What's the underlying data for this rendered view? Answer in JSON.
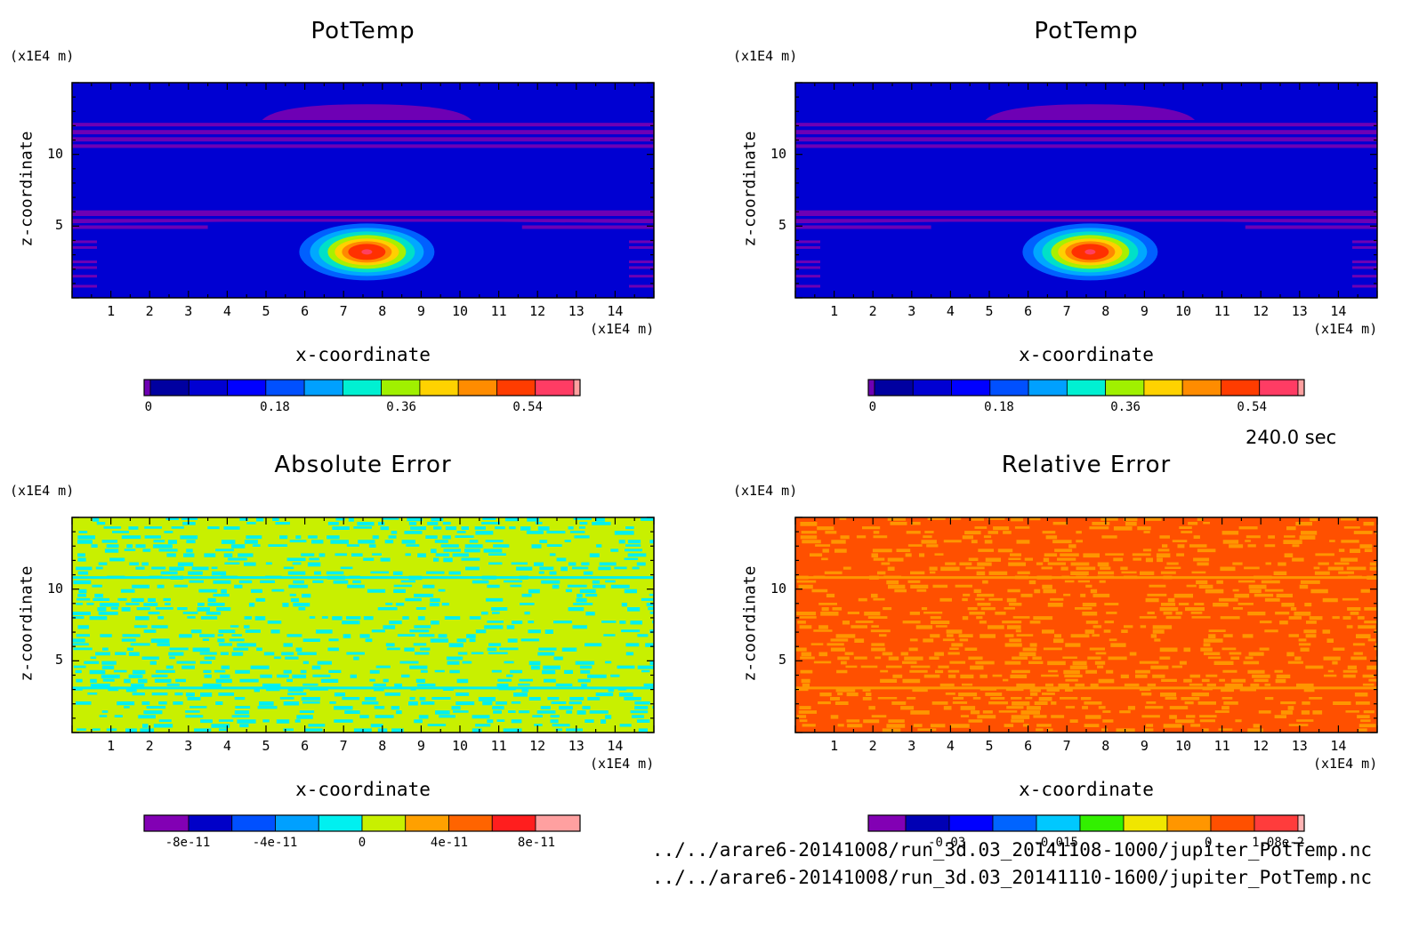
{
  "time_label": "240.0 sec",
  "file_paths": [
    "../../arare6-20141008/run_3d.03_20141108-1000/jupiter_PotTemp.nc",
    "../../arare6-20141008/run_3d.03_20141110-1600/jupiter_PotTemp.nc"
  ],
  "colors": {
    "background_blue": "#0000d2",
    "band_purple": "#6e00b4",
    "abs_bg": "#c8f000",
    "abs_fg": "#00f0f0",
    "rel_bg": "#ff5000",
    "rel_fg": "#ff9600"
  },
  "chart_data": [
    {
      "type": "heatmap",
      "title": "PotTemp",
      "xlabel": "x-coordinate",
      "ylabel": "z-coordinate",
      "x_unit": "(x1E4 m)",
      "y_unit": "(x1E4 m)",
      "xlim": [
        0,
        15
      ],
      "ylim": [
        0,
        15
      ],
      "x_ticks": [
        "1",
        "2",
        "3",
        "4",
        "5",
        "6",
        "7",
        "8",
        "9",
        "10",
        "11",
        "12",
        "13",
        "14"
      ],
      "y_ticks": [
        "5",
        "10"
      ],
      "bubble_center": [
        7.6,
        3.2
      ],
      "bubble_max": 0.6,
      "colorbar": {
        "levels": [
          "0",
          "0.18",
          "0.36",
          "0.54"
        ],
        "colors": [
          "#6e00b4",
          "#0000a0",
          "#0000d2",
          "#0000ff",
          "#0050ff",
          "#00a0ff",
          "#00f0d2",
          "#a0f000",
          "#ffd200",
          "#ff8c00",
          "#ff3c00",
          "#ff3c64",
          "#ffa0a0"
        ]
      }
    },
    {
      "type": "heatmap",
      "title": "PotTemp",
      "xlabel": "x-coordinate",
      "ylabel": "z-coordinate",
      "x_unit": "(x1E4 m)",
      "y_unit": "(x1E4 m)",
      "xlim": [
        0,
        15
      ],
      "ylim": [
        0,
        15
      ],
      "x_ticks": [
        "1",
        "2",
        "3",
        "4",
        "5",
        "6",
        "7",
        "8",
        "9",
        "10",
        "11",
        "12",
        "13",
        "14"
      ],
      "y_ticks": [
        "5",
        "10"
      ],
      "bubble_center": [
        7.6,
        3.2
      ],
      "bubble_max": 0.6,
      "colorbar": {
        "levels": [
          "0",
          "0.18",
          "0.36",
          "0.54"
        ],
        "colors": [
          "#6e00b4",
          "#0000a0",
          "#0000d2",
          "#0000ff",
          "#0050ff",
          "#00a0ff",
          "#00f0d2",
          "#a0f000",
          "#ffd200",
          "#ff8c00",
          "#ff3c00",
          "#ff3c64",
          "#ffa0a0"
        ]
      }
    },
    {
      "type": "heatmap",
      "title": "Absolute Error",
      "xlabel": "x-coordinate",
      "ylabel": "z-coordinate",
      "x_unit": "(x1E4 m)",
      "y_unit": "(x1E4 m)",
      "xlim": [
        0,
        15
      ],
      "ylim": [
        0,
        15
      ],
      "x_ticks": [
        "1",
        "2",
        "3",
        "4",
        "5",
        "6",
        "7",
        "8",
        "9",
        "10",
        "11",
        "12",
        "13",
        "14"
      ],
      "y_ticks": [
        "5",
        "10"
      ],
      "colorbar": {
        "levels": [
          "-8e-11",
          "-4e-11",
          "0",
          "4e-11",
          "8e-11"
        ],
        "colors": [
          "#8200b4",
          "#0000c8",
          "#0050ff",
          "#00a0ff",
          "#00f0f0",
          "#c8f000",
          "#ffa000",
          "#ff6400",
          "#ff1e1e",
          "#ffa0a0"
        ]
      }
    },
    {
      "type": "heatmap",
      "title": "Relative Error",
      "xlabel": "x-coordinate",
      "ylabel": "z-coordinate",
      "x_unit": "(x1E4 m)",
      "y_unit": "(x1E4 m)",
      "xlim": [
        0,
        15
      ],
      "ylim": [
        0,
        15
      ],
      "x_ticks": [
        "1",
        "2",
        "3",
        "4",
        "5",
        "6",
        "7",
        "8",
        "9",
        "10",
        "11",
        "12",
        "13",
        "14"
      ],
      "y_ticks": [
        "5",
        "10"
      ],
      "colorbar": {
        "levels": [
          "-0.03",
          "-0.015",
          "0",
          "1.08e-2"
        ],
        "colors": [
          "#8200b4",
          "#0000b4",
          "#0000ff",
          "#0064ff",
          "#00c8ff",
          "#32f000",
          "#f0e600",
          "#ff9600",
          "#ff5000",
          "#ff3c3c",
          "#ffb4b4"
        ]
      }
    }
  ]
}
